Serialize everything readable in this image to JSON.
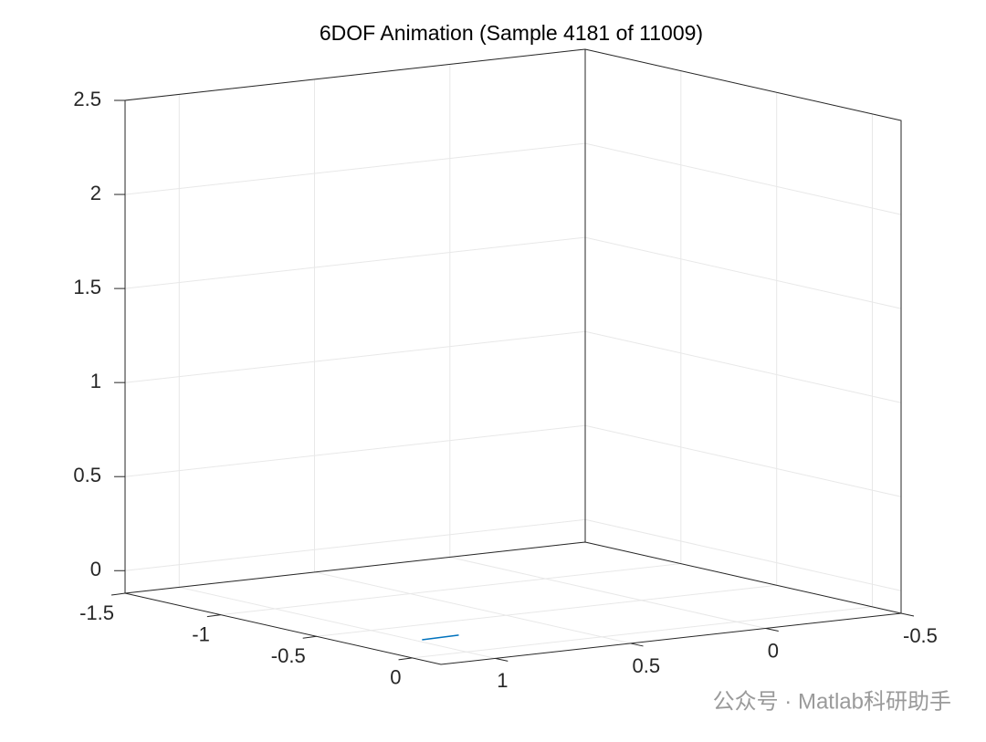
{
  "chart_data": {
    "type": "line3d",
    "title": "6DOF Animation (Sample 4181 of 11009)",
    "xlim": [
      -1.5,
      0.15
    ],
    "xticks": [
      -1.5,
      -1,
      -0.5,
      0
    ],
    "ylim": [
      -0.5,
      1.2
    ],
    "yticks": [
      1,
      0.5,
      0,
      -0.5
    ],
    "zlim": [
      -0.12,
      2.5
    ],
    "zticks": [
      0,
      0.5,
      1,
      1.5,
      2,
      2.5
    ],
    "grid": true,
    "series": [
      {
        "color": "#0072bd",
        "x": [
          -0.09,
          -0.04
        ],
        "y": [
          1.1,
          1.0
        ],
        "z": [
          -0.06,
          -0.04
        ]
      }
    ]
  },
  "watermark": "公众号 · Matlab科研助手"
}
